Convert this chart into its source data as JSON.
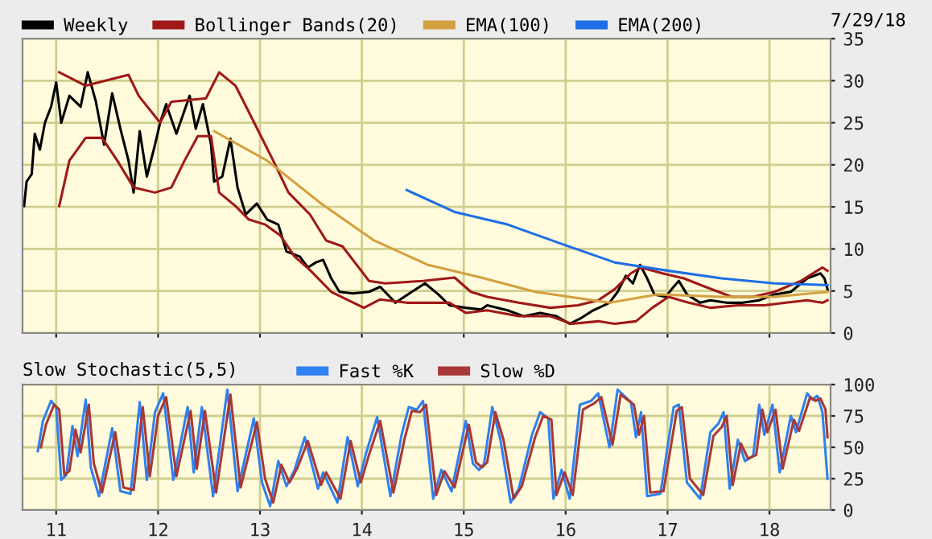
{
  "chart_data": [
    {
      "type": "line",
      "legend": "top",
      "grid": true,
      "tick_labels": "y",
      "xlim": [
        10.67,
        18.6
      ],
      "xticks": [
        11,
        12,
        13,
        14,
        15,
        16,
        17,
        18
      ],
      "ylim": [
        0,
        35
      ],
      "yticks": [
        0,
        5,
        10,
        15,
        20,
        25,
        30,
        35
      ],
      "annotations": [
        "7/29/18"
      ],
      "series": [
        {
          "name": "Weekly",
          "color": "#000000",
          "x": [
            10.685,
            10.71,
            10.76,
            10.79,
            10.84,
            10.89,
            10.95,
            11.0,
            11.05,
            11.13,
            11.24,
            11.31,
            11.39,
            11.47,
            11.55,
            11.63,
            11.71,
            11.76,
            11.82,
            11.89,
            11.97,
            12.02,
            12.08,
            12.18,
            12.31,
            12.37,
            12.44,
            12.52,
            12.55,
            12.63,
            12.71,
            12.78,
            12.86,
            12.97,
            13.07,
            13.18,
            13.26,
            13.39,
            13.47,
            13.55,
            13.62,
            13.7,
            13.78,
            13.91,
            14.07,
            14.18,
            14.33,
            14.49,
            14.62,
            14.75,
            14.86,
            15.02,
            15.17,
            15.23,
            15.43,
            15.59,
            15.75,
            15.91,
            16.04,
            16.14,
            16.27,
            16.43,
            16.51,
            16.59,
            16.66,
            16.73,
            16.8,
            16.87,
            16.98,
            17.06,
            17.11,
            17.19,
            17.32,
            17.42,
            17.58,
            17.74,
            17.9,
            18.05,
            18.21,
            18.37,
            18.5,
            18.54,
            18.57
          ],
          "values": [
            15.1,
            18.0,
            18.9,
            23.7,
            21.8,
            25.0,
            26.9,
            29.8,
            25.0,
            28.2,
            26.9,
            31.0,
            27.5,
            22.4,
            28.5,
            24.3,
            20.5,
            16.7,
            24.0,
            18.6,
            22.4,
            25.0,
            27.2,
            23.7,
            28.2,
            24.3,
            27.2,
            22.4,
            18.0,
            18.6,
            23.1,
            17.3,
            14.1,
            15.4,
            13.5,
            12.9,
            9.7,
            9.1,
            7.8,
            8.4,
            8.7,
            6.5,
            4.9,
            4.7,
            4.9,
            5.5,
            3.6,
            4.9,
            5.9,
            4.6,
            3.3,
            3.0,
            2.8,
            3.3,
            2.7,
            2.0,
            2.4,
            2.0,
            1.1,
            1.7,
            2.7,
            3.6,
            4.9,
            6.8,
            5.9,
            8.1,
            6.5,
            4.6,
            4.3,
            5.5,
            6.2,
            4.6,
            3.6,
            3.9,
            3.6,
            3.6,
            3.9,
            4.6,
            4.9,
            6.5,
            7.1,
            6.5,
            5.2
          ]
        },
        {
          "name": "Bollinger Bands(20)",
          "color": "#a01818",
          "x": [
            11.03,
            11.29,
            11.71,
            11.81,
            12.02,
            12.13,
            12.47,
            12.6,
            12.76,
            12.89,
            13.13,
            13.28,
            13.49,
            13.65,
            13.81,
            14.07,
            14.23,
            14.6,
            14.91,
            15.07,
            15.23,
            15.54,
            15.85,
            16.12,
            16.32,
            16.48,
            16.64,
            16.74,
            16.95,
            17.16,
            17.37,
            17.63,
            17.84,
            18.05,
            18.31,
            18.52,
            18.57
          ],
          "values": [
            31.0,
            29.4,
            30.7,
            28.2,
            25.0,
            27.5,
            27.9,
            31.0,
            29.4,
            26.3,
            20.5,
            16.7,
            14.1,
            11.0,
            10.3,
            6.2,
            5.9,
            6.2,
            6.6,
            4.9,
            4.3,
            3.6,
            3.0,
            3.3,
            3.9,
            5.2,
            7.1,
            7.8,
            7.1,
            6.5,
            5.5,
            4.3,
            4.3,
            4.9,
            6.2,
            7.8,
            7.4
          ]
        },
        {
          "color": "#a01818",
          "x": [
            11.03,
            11.13,
            11.29,
            11.45,
            11.6,
            11.76,
            11.97,
            12.13,
            12.26,
            12.39,
            12.52,
            12.6,
            12.76,
            12.89,
            13.05,
            13.2,
            13.34,
            13.49,
            13.7,
            14.02,
            14.18,
            14.44,
            14.86,
            15.02,
            15.23,
            15.54,
            15.85,
            16.06,
            16.32,
            16.48,
            16.69,
            16.85,
            17.01,
            17.21,
            17.42,
            17.69,
            17.95,
            18.16,
            18.37,
            18.52,
            18.57
          ],
          "values": [
            15.1,
            20.5,
            23.2,
            23.2,
            20.5,
            17.3,
            16.7,
            17.3,
            20.5,
            23.4,
            23.4,
            16.7,
            15.1,
            13.5,
            12.9,
            11.6,
            9.1,
            7.5,
            4.9,
            3.0,
            4.0,
            3.6,
            3.6,
            2.4,
            2.7,
            2.0,
            2.0,
            1.1,
            1.4,
            1.1,
            1.4,
            3.0,
            4.3,
            3.6,
            3.0,
            3.3,
            3.3,
            3.6,
            3.9,
            3.6,
            3.9
          ]
        },
        {
          "name": "EMA(100)",
          "color": "#d4a040",
          "x": [
            12.55,
            13.07,
            13.6,
            14.12,
            14.65,
            15.17,
            15.7,
            16.43,
            16.9,
            17.53,
            18.05,
            18.57
          ],
          "values": [
            24.0,
            20.5,
            15.4,
            11.0,
            8.1,
            6.6,
            4.9,
            3.6,
            4.6,
            4.3,
            4.3,
            4.9
          ]
        },
        {
          "name": "EMA(200)",
          "color": "#1e6ee6",
          "x": [
            14.44,
            14.91,
            15.43,
            15.96,
            16.48,
            17.01,
            17.53,
            18.05,
            18.57
          ],
          "values": [
            17.0,
            14.4,
            12.9,
            10.6,
            8.4,
            7.4,
            6.5,
            5.9,
            5.7
          ]
        }
      ]
    },
    {
      "type": "line",
      "title": "Slow Stochastic(5,5)",
      "legend": "top",
      "grid": true,
      "xlim": [
        10.67,
        18.6
      ],
      "xticks": [
        11,
        12,
        13,
        14,
        15,
        16,
        17,
        18
      ],
      "ylim": [
        0,
        100
      ],
      "yticks": [
        0,
        25,
        50,
        75,
        100
      ],
      "series": [
        {
          "name": "Fast %K",
          "color": "#2f80f0",
          "x": [
            10.82,
            10.87,
            10.95,
            11.0,
            11.05,
            11.1,
            11.16,
            11.21,
            11.29,
            11.34,
            11.42,
            11.55,
            11.63,
            11.73,
            11.82,
            11.89,
            11.97,
            12.05,
            12.15,
            12.29,
            12.35,
            12.43,
            12.54,
            12.68,
            12.78,
            12.94,
            13.02,
            13.1,
            13.18,
            13.26,
            13.34,
            13.44,
            13.57,
            13.62,
            13.76,
            13.86,
            13.96,
            14.04,
            14.15,
            14.28,
            14.39,
            14.46,
            14.54,
            14.6,
            14.7,
            14.78,
            14.88,
            15.02,
            15.09,
            15.15,
            15.2,
            15.28,
            15.36,
            15.46,
            15.54,
            15.67,
            15.75,
            15.83,
            15.88,
            15.96,
            16.04,
            16.14,
            16.25,
            16.32,
            16.43,
            16.51,
            16.64,
            16.69,
            16.74,
            16.8,
            16.93,
            17.06,
            17.11,
            17.19,
            17.32,
            17.42,
            17.5,
            17.55,
            17.61,
            17.69,
            17.76,
            17.84,
            17.9,
            17.95,
            18.03,
            18.1,
            18.21,
            18.26,
            18.37,
            18.42,
            18.47,
            18.52,
            18.57
          ],
          "values": [
            47,
            71,
            87,
            82,
            24,
            28,
            67,
            43,
            88,
            34,
            11,
            65,
            15,
            13,
            86,
            24,
            78,
            93,
            24,
            82,
            30,
            82,
            11,
            96,
            15,
            73,
            22,
            3,
            39,
            19,
            32,
            58,
            17,
            30,
            6,
            58,
            19,
            45,
            74,
            11,
            60,
            82,
            80,
            87,
            9,
            32,
            15,
            71,
            37,
            32,
            37,
            82,
            56,
            6,
            17,
            60,
            78,
            73,
            9,
            32,
            9,
            84,
            87,
            93,
            50,
            96,
            86,
            58,
            78,
            11,
            13,
            82,
            84,
            22,
            9,
            62,
            69,
            78,
            17,
            56,
            39,
            43,
            84,
            60,
            84,
            30,
            75,
            62,
            93,
            88,
            91,
            78,
            25
          ]
        },
        {
          "name": "Slow %D",
          "color": "#a83838",
          "x": [
            10.85,
            10.9,
            10.98,
            11.03,
            11.08,
            11.13,
            11.19,
            11.24,
            11.32,
            11.37,
            11.45,
            11.58,
            11.66,
            11.76,
            11.85,
            11.92,
            12.0,
            12.08,
            12.18,
            12.32,
            12.38,
            12.46,
            12.57,
            12.71,
            12.81,
            12.97,
            13.05,
            13.13,
            13.21,
            13.29,
            13.37,
            13.47,
            13.6,
            13.65,
            13.79,
            13.89,
            13.99,
            14.07,
            14.18,
            14.31,
            14.42,
            14.49,
            14.57,
            14.63,
            14.73,
            14.81,
            14.91,
            15.05,
            15.12,
            15.18,
            15.23,
            15.31,
            15.39,
            15.49,
            15.57,
            15.7,
            15.78,
            15.86,
            15.91,
            15.99,
            16.07,
            16.17,
            16.28,
            16.35,
            16.46,
            16.54,
            16.67,
            16.72,
            16.77,
            16.83,
            16.96,
            17.09,
            17.14,
            17.22,
            17.35,
            17.45,
            17.53,
            17.58,
            17.64,
            17.72,
            17.79,
            17.87,
            17.93,
            17.98,
            18.06,
            18.13,
            18.24,
            18.29,
            18.4,
            18.45,
            18.5,
            18.55,
            18.57
          ],
          "values": [
            50,
            68,
            84,
            80,
            28,
            31,
            64,
            46,
            84,
            37,
            14,
            62,
            18,
            16,
            82,
            27,
            75,
            90,
            27,
            79,
            33,
            79,
            14,
            92,
            18,
            70,
            25,
            6,
            36,
            22,
            34,
            55,
            20,
            30,
            9,
            55,
            22,
            44,
            71,
            14,
            57,
            79,
            78,
            84,
            12,
            31,
            18,
            68,
            38,
            34,
            38,
            78,
            56,
            9,
            19,
            58,
            75,
            72,
            12,
            30,
            12,
            80,
            85,
            90,
            52,
            92,
            84,
            60,
            75,
            14,
            15,
            79,
            82,
            25,
            12,
            59,
            66,
            75,
            20,
            53,
            41,
            44,
            80,
            62,
            80,
            33,
            72,
            63,
            90,
            87,
            89,
            80,
            58
          ]
        }
      ]
    }
  ]
}
